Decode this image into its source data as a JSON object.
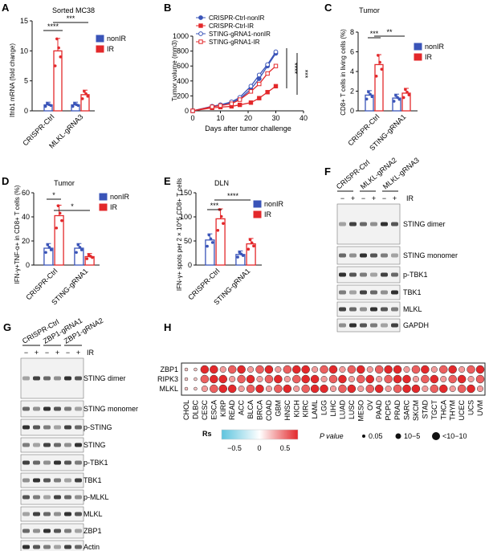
{
  "panels": {
    "A": {
      "letter": "A",
      "title": "Sorted MC38",
      "ylabel": "Ifnb1 mRNA (fold change)",
      "yticks": [
        "0",
        "5",
        "10",
        "15"
      ],
      "groups": [
        "CRISPR-Ctrl",
        "MLKL-gRNA3"
      ],
      "legend": [
        "nonIR",
        "IR"
      ],
      "sig": [
        "****",
        "***"
      ],
      "chart_data": {
        "type": "bar",
        "categories": [
          "CRISPR-Ctrl",
          "MLKL-gRNA3"
        ],
        "series": [
          {
            "name": "nonIR",
            "values": [
              1.0,
              1.0
            ]
          },
          {
            "name": "IR",
            "values": [
              10.0,
              2.7
            ]
          }
        ],
        "ylim": [
          0,
          15
        ]
      }
    },
    "B": {
      "letter": "B",
      "ylabel": "Tumor volume (mm3)",
      "xlabel": "Days after tumor challenge",
      "xticks": [
        "0",
        "10",
        "20",
        "30",
        "40"
      ],
      "yticks": [
        "0",
        "200",
        "400",
        "600",
        "800",
        "1000"
      ],
      "legend": [
        "CRISPR-Ctrl-nonIR",
        "CRISPR-Ctrl-IR",
        "STING-gRNA1-nonIR",
        "STING-gRNA1-IR"
      ],
      "sig": [
        "****",
        "***"
      ],
      "chart_data": {
        "type": "line",
        "x": [
          0,
          7,
          10,
          14,
          17,
          21,
          24,
          27,
          30
        ],
        "series": [
          {
            "name": "CRISPR-Ctrl-nonIR",
            "values": [
              0,
              60,
              80,
              110,
              160,
              290,
              430,
              600,
              770
            ]
          },
          {
            "name": "CRISPR-Ctrl-IR",
            "values": [
              0,
              40,
              50,
              60,
              80,
              110,
              170,
              250,
              330
            ]
          },
          {
            "name": "STING-gRNA1-nonIR",
            "values": [
              0,
              60,
              80,
              120,
              180,
              330,
              480,
              620,
              790
            ]
          },
          {
            "name": "STING-gRNA1-IR",
            "values": [
              0,
              55,
              70,
              95,
              150,
              260,
              360,
              500,
              600
            ]
          }
        ],
        "xlim": [
          0,
          40
        ],
        "ylim": [
          0,
          1000
        ]
      }
    },
    "C": {
      "letter": "C",
      "title": "Tumor",
      "ylabel": "CD8+ T cells in living cells (%)",
      "yticks": [
        "0",
        "2",
        "4",
        "6",
        "8"
      ],
      "groups": [
        "CRISPR-Ctrl",
        "STING-gRNA1"
      ],
      "legend": [
        "nonIR",
        "IR"
      ],
      "sig": [
        "***",
        "**"
      ],
      "chart_data": {
        "type": "bar",
        "categories": [
          "CRISPR-Ctrl",
          "STING-gRNA1"
        ],
        "series": [
          {
            "name": "nonIR",
            "values": [
              1.6,
              1.3
            ]
          },
          {
            "name": "IR",
            "values": [
              4.7,
              1.8
            ]
          }
        ],
        "ylim": [
          0,
          8
        ]
      }
    },
    "D": {
      "letter": "D",
      "title": "Tumor",
      "ylabel": "IFN-γ+TNF-α+ in CD8+ T cells (%)",
      "yticks": [
        "0",
        "20",
        "40",
        "60"
      ],
      "groups": [
        "CRISPR-Ctrl",
        "STING-gRNA1"
      ],
      "legend": [
        "nonIR",
        "IR"
      ],
      "sig": [
        "*",
        "*"
      ],
      "chart_data": {
        "type": "bar",
        "categories": [
          "CRISPR-Ctrl",
          "STING-gRNA1"
        ],
        "series": [
          {
            "name": "nonIR",
            "values": [
              14,
              14
            ]
          },
          {
            "name": "IR",
            "values": [
              41,
              7
            ]
          }
        ],
        "ylim": [
          0,
          60
        ]
      }
    },
    "E": {
      "letter": "E",
      "title": "DLN",
      "ylabel": "IFN-γ+ spots per 2 × 10^5 CD8+ T cells",
      "yticks": [
        "0",
        "50",
        "100",
        "150"
      ],
      "groups": [
        "CRISPR-Ctrl",
        "STING-gRNA1"
      ],
      "legend": [
        "nonIR",
        "IR"
      ],
      "sig": [
        "***",
        "****"
      ],
      "chart_data": {
        "type": "bar",
        "categories": [
          "CRISPR-Ctrl",
          "STING-gRNA1"
        ],
        "series": [
          {
            "name": "nonIR",
            "values": [
              52,
              22
            ]
          },
          {
            "name": "IR",
            "values": [
              96,
              44
            ]
          }
        ],
        "ylim": [
          0,
          150
        ]
      }
    },
    "F": {
      "letter": "F",
      "cols": [
        "CRISPR-Ctrl",
        "MLKL-gRNA2",
        "MLKL-gRNA3"
      ],
      "ir_label": "IR",
      "ir_signs": [
        "−",
        "+",
        "−",
        "+",
        "−",
        "+"
      ],
      "bands": [
        "STING dimer",
        "STING monomer",
        "p-TBK1",
        "TBK1",
        "MLKL",
        "GAPDH"
      ]
    },
    "G": {
      "letter": "G",
      "cols": [
        "CRISPR-Ctrl",
        "ZBP1-gRNA1",
        "ZBP1-gRNA2"
      ],
      "ir_label": "IR",
      "ir_signs": [
        "−",
        "+",
        "−",
        "+",
        "−",
        "+"
      ],
      "bands": [
        "STING dimer",
        "STING monomer",
        "p-STING",
        "STING",
        "p-TBK1",
        "TBK1",
        "p-MLKL",
        "MLKL",
        "ZBP1",
        "Actin"
      ]
    },
    "H": {
      "letter": "H",
      "rows": [
        "ZBP1",
        "RIPK3",
        "MLKL"
      ],
      "cancers": [
        "CHOL",
        "DLBC",
        "CESC",
        "ESCA",
        "KIRP",
        "READ",
        "ACC",
        "BLCA",
        "BRCA",
        "COAD",
        "GBM",
        "HNSC",
        "KICH",
        "KIRC",
        "LAML",
        "LGG",
        "LIHC",
        "LUAD",
        "LUSC",
        "MESO",
        "OV",
        "PAAD",
        "PCPG",
        "PRAD",
        "SARC",
        "SKCM",
        "STAD",
        "TGCT",
        "THCA",
        "THYM",
        "UCEC",
        "UCS",
        "UVM"
      ],
      "rs_label": "Rs",
      "rs_ticks": [
        "−0.5",
        "0",
        "0.5"
      ],
      "p_label": "P value",
      "p_ticks": [
        "0.05",
        "10−5",
        "<10−10"
      ]
    }
  },
  "colors": {
    "nonIR": "#3a54b8",
    "IR": "#e3282b"
  }
}
